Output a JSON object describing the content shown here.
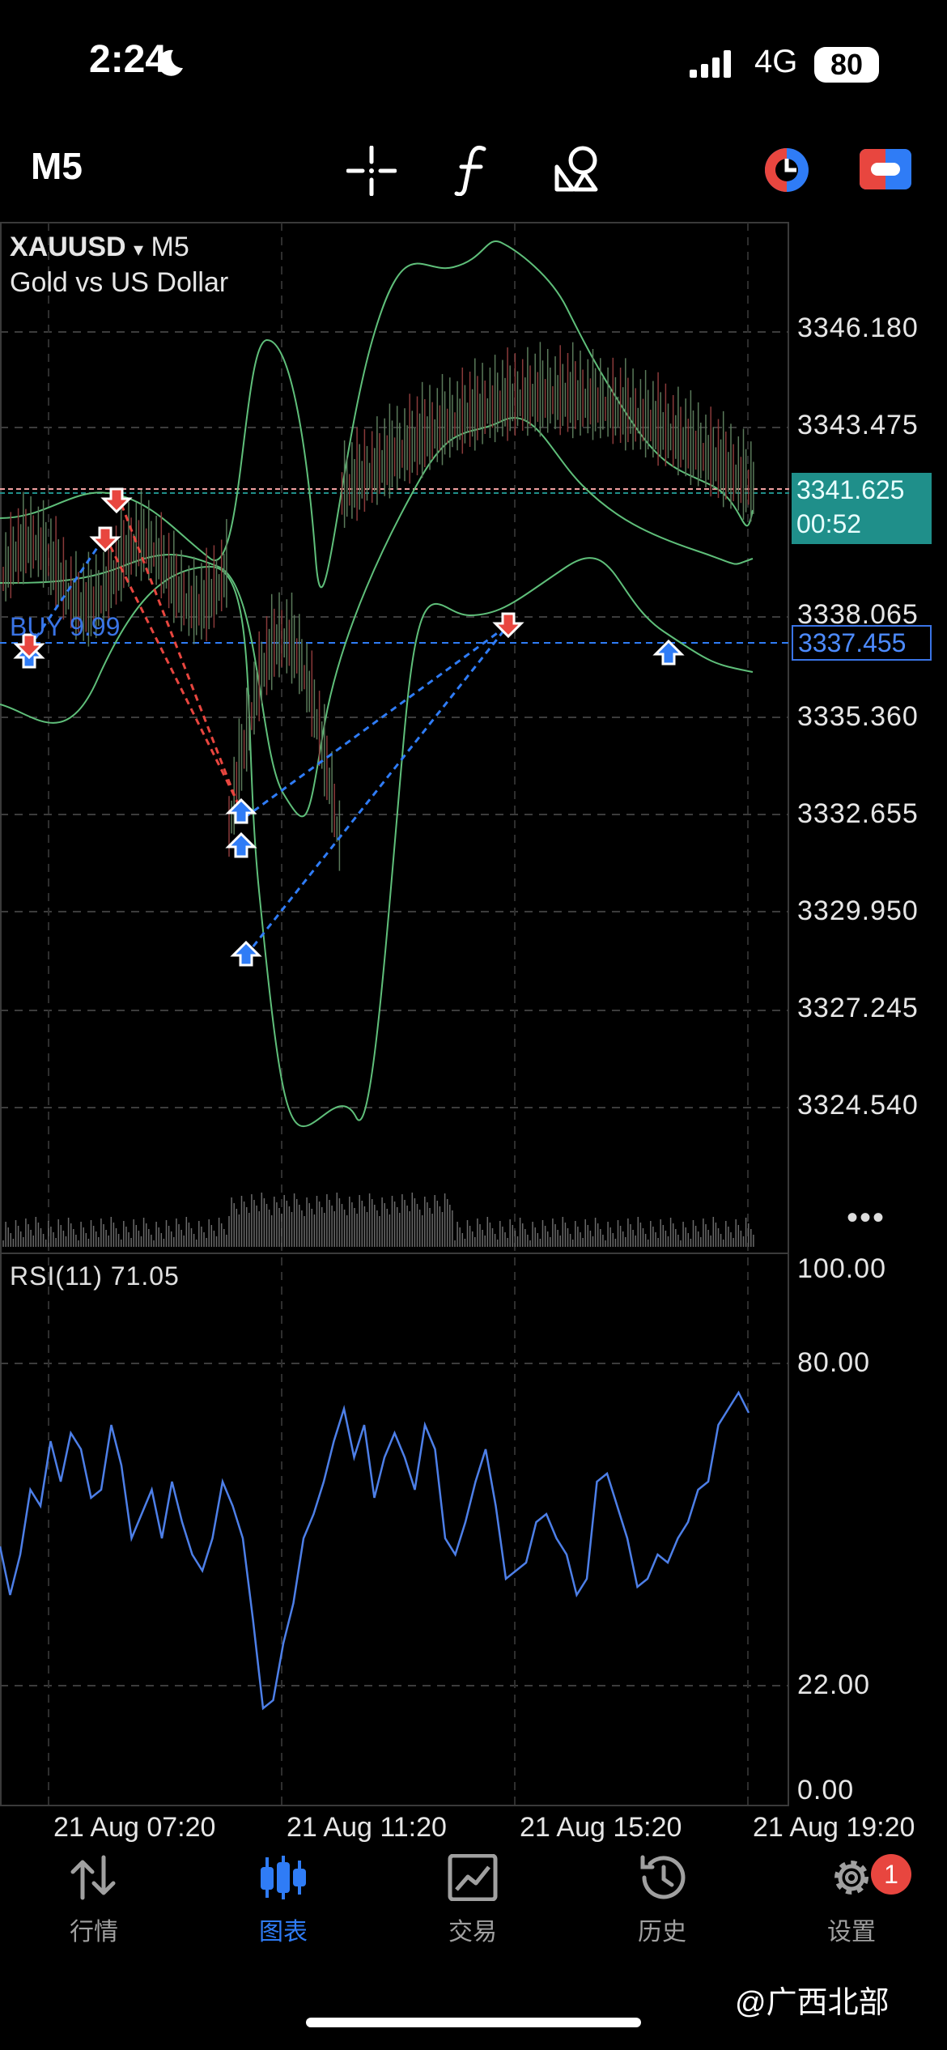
{
  "status_bar": {
    "time": "2:24",
    "network": "4G",
    "battery": "80"
  },
  "toolbar": {
    "timeframe": "M5",
    "crosshair_icon": "crosshair-icon",
    "indicators_icon": "function-icon",
    "objects_icon": "shapes-icon",
    "trade_icon": "one-click-trading-icon",
    "share_icon": "switch-icon"
  },
  "chart": {
    "symbol": "XAUUSD",
    "symbol_arrow": "▾",
    "timeframe": "M5",
    "description": "Gold vs US Dollar",
    "price_levels": [
      "3346.180",
      "3343.475",
      "3341.625",
      "3338.065",
      "3335.360",
      "3332.655",
      "3329.950",
      "3327.245",
      "3324.540"
    ],
    "current_price": "3341.625",
    "bar_timer": "00:52",
    "bid_price": "3337.455",
    "position_label": "BUY 9.99",
    "more_label": "•••",
    "colors": {
      "bollinger": "#5fbf7a",
      "buy": "#2f7cf6",
      "sell": "#e8463f",
      "price_line": "#1f8f8a",
      "rsi": "#4d7fe8"
    }
  },
  "rsi": {
    "label": "RSI(11) 71.05",
    "levels": [
      "100.00",
      "80.00",
      "22.00",
      "0.00"
    ]
  },
  "time_axis": [
    "21 Aug 07:20",
    "21 Aug 11:20",
    "21 Aug 15:20",
    "21 Aug 19:20"
  ],
  "tabs": [
    {
      "label": "行情",
      "icon": "quotes-icon",
      "active": false
    },
    {
      "label": "图表",
      "icon": "chart-icon",
      "active": true
    },
    {
      "label": "交易",
      "icon": "trade-icon",
      "active": false
    },
    {
      "label": "历史",
      "icon": "history-icon",
      "active": false
    },
    {
      "label": "设置",
      "icon": "settings-icon",
      "active": false
    }
  ],
  "settings_badge": "1",
  "watermark": "@广西北部"
}
